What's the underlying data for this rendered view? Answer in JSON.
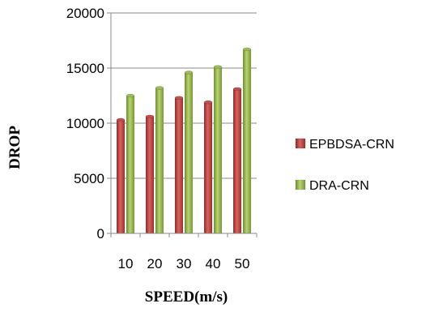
{
  "chart_data": {
    "type": "bar",
    "categories": [
      "10",
      "20",
      "30",
      "40",
      "50"
    ],
    "series": [
      {
        "name": "EPBDSA-CRN",
        "values": [
          10300,
          10600,
          12300,
          11900,
          13100
        ],
        "color": "#c0504d"
      },
      {
        "name": "DRA-CRN",
        "values": [
          12500,
          13200,
          14600,
          15100,
          16700
        ],
        "color": "#9bbb59"
      }
    ],
    "xlabel": "SPEED(m/s)",
    "ylabel": "DROP",
    "ylim": [
      0,
      20000
    ],
    "yticks": [
      "0",
      "5000",
      "10000",
      "15000",
      "20000"
    ],
    "grid": true,
    "legend": "right",
    "style": "3d-cylinder"
  }
}
